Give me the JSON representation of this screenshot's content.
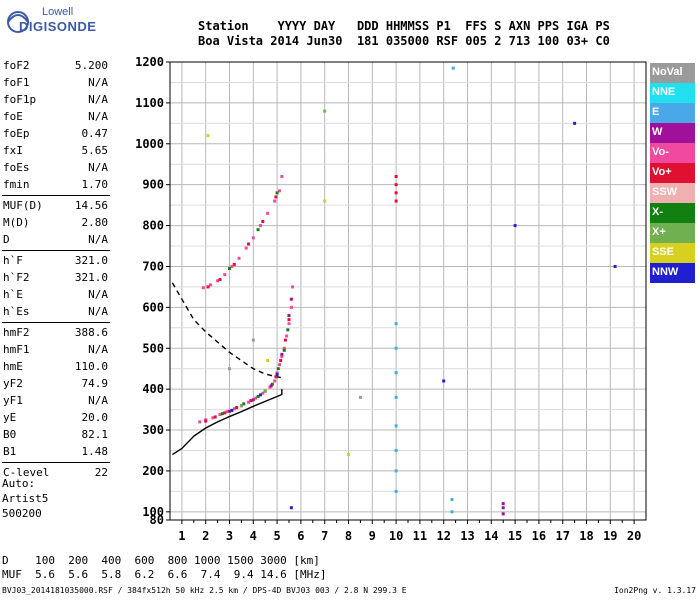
{
  "logo": {
    "line1": "Lowell",
    "line2": "DIGISONDE"
  },
  "header": {
    "labels": "Station    YYYY DAY   DDD HHMMSS P1  FFS S AXN PPS IGA PS",
    "values": "Boa Vista 2014 Jun30  181 035000 RSF 005 2 713 100 03+ C0"
  },
  "params": [
    {
      "group": [
        {
          "name": "foF2",
          "value": "5.200"
        },
        {
          "name": "foF1",
          "value": "N/A"
        },
        {
          "name": "foF1p",
          "value": "N/A"
        },
        {
          "name": "foE",
          "value": "N/A"
        },
        {
          "name": "foEp",
          "value": "0.47"
        },
        {
          "name": "fxI",
          "value": "5.65"
        },
        {
          "name": "foEs",
          "value": "N/A"
        },
        {
          "name": "fmin",
          "value": "1.70"
        }
      ]
    },
    {
      "group": [
        {
          "name": "MUF(D)",
          "value": "14.56"
        },
        {
          "name": "M(D)",
          "value": "2.80"
        },
        {
          "name": "D",
          "value": "N/A"
        }
      ]
    },
    {
      "group": [
        {
          "name": "h`F",
          "value": "321.0"
        },
        {
          "name": "h`F2",
          "value": "321.0"
        },
        {
          "name": "h`E",
          "value": "N/A"
        },
        {
          "name": "h`Es",
          "value": "N/A"
        }
      ]
    },
    {
      "group": [
        {
          "name": "hmF2",
          "value": "388.6"
        },
        {
          "name": "hmF1",
          "value": "N/A"
        },
        {
          "name": "hmE",
          "value": "110.0"
        },
        {
          "name": "yF2",
          "value": "74.9"
        },
        {
          "name": "yF1",
          "value": "N/A"
        },
        {
          "name": "yE",
          "value": "20.0"
        },
        {
          "name": "B0",
          "value": "82.1"
        },
        {
          "name": "B1",
          "value": "1.48"
        }
      ]
    },
    {
      "group": [
        {
          "name": "C-level",
          "value": "22"
        }
      ]
    }
  ],
  "auto": {
    "line1": "Auto:",
    "line2": "Artist5",
    "line3": "500200"
  },
  "legend": [
    {
      "label": "NoVal",
      "color": "#9a9a9a"
    },
    {
      "label": "NNE",
      "color": "#22dff0"
    },
    {
      "label": "E",
      "color": "#4aa8e8"
    },
    {
      "label": "W",
      "color": "#a0109a"
    },
    {
      "label": "Vo-",
      "color": "#f04aa0"
    },
    {
      "label": "Vo+",
      "color": "#e01030"
    },
    {
      "label": "SSW",
      "color": "#f0b0b0"
    },
    {
      "label": "X-",
      "color": "#108010"
    },
    {
      "label": "X+",
      "color": "#70b050"
    },
    {
      "label": "SSE",
      "color": "#d8d020"
    },
    {
      "label": "NNW",
      "color": "#2020d0"
    }
  ],
  "bottom": {
    "line1": "D    100  200  400  600  800 1000 1500 3000 [km]",
    "line2": "MUF  5.6  5.6  5.8  6.2  6.6  7.4  9.4 14.6 [MHz]"
  },
  "footer": "BVJ03_2014181035000.RSF / 384fx512h 50 kHz 2.5 km / DPS-4D BVJ03 003 / 2.8 N 299.3 E",
  "version": "Ion2Png v. 1.3.17",
  "chart_data": {
    "type": "scatter",
    "xlabel": "",
    "ylabel": "",
    "xlim": [
      0.5,
      20.5
    ],
    "ylim": [
      80,
      1200
    ],
    "x_ticks": [
      1,
      2,
      3,
      4,
      5,
      6,
      7,
      8,
      9,
      10,
      11,
      12,
      13,
      14,
      15,
      16,
      17,
      18,
      19,
      20
    ],
    "y_ticks": [
      80,
      100,
      200,
      300,
      400,
      500,
      600,
      700,
      800,
      900,
      1000,
      1100,
      1200
    ],
    "grid": true,
    "series": [
      {
        "color": "#f04aa0",
        "points": [
          [
            1.75,
            320
          ],
          [
            2.0,
            325
          ],
          [
            2.3,
            330
          ],
          [
            2.6,
            338
          ],
          [
            2.9,
            345
          ],
          [
            3.2,
            352
          ],
          [
            3.5,
            360
          ],
          [
            3.8,
            368
          ],
          [
            4.1,
            378
          ],
          [
            4.4,
            390
          ],
          [
            4.7,
            405
          ],
          [
            4.9,
            420
          ],
          [
            5.0,
            440
          ],
          [
            5.1,
            460
          ],
          [
            5.2,
            480
          ],
          [
            5.3,
            500
          ],
          [
            5.4,
            530
          ],
          [
            5.5,
            560
          ],
          [
            5.6,
            600
          ],
          [
            5.65,
            650
          ],
          [
            1.9,
            648
          ],
          [
            2.2,
            655
          ],
          [
            2.5,
            665
          ],
          [
            2.8,
            680
          ],
          [
            3.1,
            700
          ],
          [
            3.4,
            720
          ],
          [
            3.7,
            745
          ],
          [
            4.0,
            770
          ],
          [
            4.3,
            800
          ],
          [
            4.6,
            830
          ],
          [
            4.9,
            860
          ],
          [
            5.1,
            885
          ],
          [
            5.2,
            920
          ]
        ]
      },
      {
        "color": "#e01030",
        "points": [
          [
            2.0,
            322
          ],
          [
            2.4,
            332
          ],
          [
            2.8,
            342
          ],
          [
            3.3,
            355
          ],
          [
            3.9,
            372
          ],
          [
            4.5,
            395
          ],
          [
            4.95,
            430
          ],
          [
            5.15,
            470
          ],
          [
            5.35,
            520
          ],
          [
            5.5,
            570
          ],
          [
            2.1,
            650
          ],
          [
            2.6,
            668
          ],
          [
            3.2,
            705
          ],
          [
            3.8,
            755
          ],
          [
            4.4,
            810
          ],
          [
            4.95,
            870
          ],
          [
            10.0,
            860
          ],
          [
            10.0,
            880
          ],
          [
            10.0,
            900
          ],
          [
            10.0,
            920
          ]
        ]
      },
      {
        "color": "#108010",
        "points": [
          [
            2.7,
            340
          ],
          [
            3.6,
            364
          ],
          [
            4.2,
            382
          ],
          [
            4.8,
            412
          ],
          [
            5.05,
            450
          ],
          [
            5.3,
            495
          ],
          [
            5.45,
            545
          ],
          [
            3.0,
            695
          ],
          [
            4.2,
            790
          ],
          [
            5.0,
            880
          ]
        ]
      },
      {
        "color": "#a0109a",
        "points": [
          [
            3.0,
            346
          ],
          [
            4.0,
            374
          ],
          [
            4.75,
            408
          ],
          [
            5.2,
            485
          ],
          [
            5.5,
            580
          ],
          [
            5.6,
            620
          ],
          [
            14.5,
            95
          ],
          [
            14.5,
            110
          ],
          [
            14.5,
            120
          ]
        ]
      },
      {
        "color": "#4aa8e8",
        "points": [
          [
            10.0,
            150
          ],
          [
            10.0,
            200
          ],
          [
            10.0,
            250
          ],
          [
            10.0,
            310
          ],
          [
            10.0,
            380
          ],
          [
            10.0,
            440
          ],
          [
            10.0,
            500
          ],
          [
            10.0,
            560
          ],
          [
            12.35,
            100
          ],
          [
            12.35,
            130
          ],
          [
            12.4,
            1185
          ]
        ]
      },
      {
        "color": "#2020d0",
        "points": [
          [
            3.1,
            348
          ],
          [
            4.3,
            386
          ],
          [
            5.0,
            436
          ],
          [
            12.0,
            420
          ],
          [
            15.0,
            800
          ],
          [
            17.5,
            1050
          ],
          [
            19.2,
            700
          ],
          [
            5.6,
            110
          ]
        ]
      },
      {
        "color": "#d8d020",
        "points": [
          [
            7.0,
            860
          ],
          [
            8.0,
            240
          ],
          [
            4.6,
            470
          ],
          [
            2.1,
            1020
          ]
        ]
      },
      {
        "color": "#70b050",
        "points": [
          [
            4.5,
            395
          ],
          [
            3.5,
            359
          ],
          [
            7.0,
            1080
          ]
        ]
      },
      {
        "color": "#9a9a9a",
        "points": [
          [
            3.0,
            450
          ],
          [
            4.0,
            520
          ],
          [
            8.5,
            380
          ]
        ]
      }
    ],
    "lines": [
      {
        "style": "solid",
        "color": "#000000",
        "points": [
          [
            0.6,
            240
          ],
          [
            1.0,
            255
          ],
          [
            1.5,
            285
          ],
          [
            2.0,
            305
          ],
          [
            2.5,
            320
          ],
          [
            3.0,
            333
          ],
          [
            3.5,
            345
          ],
          [
            4.0,
            358
          ],
          [
            4.5,
            370
          ],
          [
            5.0,
            382
          ],
          [
            5.2,
            387
          ],
          [
            5.2,
            400
          ]
        ]
      },
      {
        "style": "dashed",
        "color": "#000000",
        "points": [
          [
            0.6,
            660
          ],
          [
            1.0,
            620
          ],
          [
            1.5,
            570
          ],
          [
            2.0,
            540
          ],
          [
            2.5,
            515
          ],
          [
            3.0,
            490
          ],
          [
            3.5,
            470
          ],
          [
            4.0,
            450
          ],
          [
            4.5,
            437
          ],
          [
            5.0,
            430
          ],
          [
            5.2,
            428
          ]
        ]
      }
    ]
  }
}
